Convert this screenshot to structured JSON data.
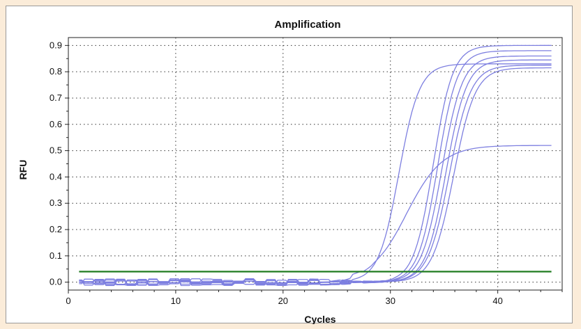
{
  "chart_data": {
    "type": "line",
    "title": "Amplification",
    "xlabel": "Cycles",
    "ylabel": "RFU",
    "xlim": [
      0,
      46
    ],
    "ylim": [
      -0.03,
      0.93
    ],
    "x_ticks": [
      0,
      10,
      20,
      30,
      40
    ],
    "y_ticks": [
      0.0,
      0.1,
      0.2,
      0.3,
      0.4,
      0.5,
      0.6,
      0.7,
      0.8,
      0.9
    ],
    "grid": true,
    "threshold": {
      "value": 0.04,
      "x_start": 1,
      "x_end": 45,
      "color": "#1e7a1e"
    },
    "series_color": "#7d7fe0",
    "sigmoid_series": [
      {
        "max": 0.83,
        "mid": 30.8,
        "slope": 1.05,
        "noise_seed": 1
      },
      {
        "max": 0.9,
        "mid": 34.0,
        "slope": 1.1,
        "noise_seed": 2
      },
      {
        "max": 0.88,
        "mid": 34.4,
        "slope": 1.1,
        "noise_seed": 3
      },
      {
        "max": 0.86,
        "mid": 34.8,
        "slope": 1.05,
        "noise_seed": 4
      },
      {
        "max": 0.845,
        "mid": 35.2,
        "slope": 1.05,
        "noise_seed": 5
      },
      {
        "max": 0.825,
        "mid": 35.5,
        "slope": 1.0,
        "noise_seed": 6
      },
      {
        "max": 0.815,
        "mid": 35.9,
        "slope": 1.0,
        "noise_seed": 7
      }
    ],
    "plateau_series": [
      {
        "max": 0.52,
        "mid": 31.5,
        "slope": 0.6,
        "noise_seed": 8
      }
    ],
    "x_start": 1,
    "x_end": 45
  }
}
